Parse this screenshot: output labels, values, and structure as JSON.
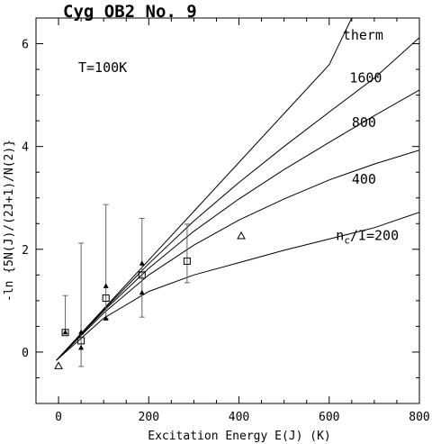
{
  "chart_data": {
    "type": "line",
    "title": "Cyg OB2 No. 9",
    "annotation": "T=100K",
    "xlabel": "Excitation Energy E(J) (K)",
    "ylabel": "-ln {5N(J)/(2J+1)/N(2)}",
    "xlim": [
      -50,
      800
    ],
    "ylim": [
      -1,
      6.5
    ],
    "xticks": [
      0,
      200,
      400,
      600,
      800
    ],
    "yticks": [
      0,
      2,
      4,
      6
    ],
    "grid": false,
    "model_curves": [
      {
        "label": "therm",
        "x": [
          -5,
          100,
          200,
          300,
          400,
          500,
          600,
          650
        ],
        "y": [
          -0.16,
          0.84,
          1.79,
          2.74,
          3.69,
          4.64,
          5.59,
          6.5
        ]
      },
      {
        "label": "1600",
        "x": [
          -5,
          100,
          200,
          300,
          400,
          500,
          600,
          700,
          800
        ],
        "y": [
          -0.16,
          0.82,
          1.72,
          2.55,
          3.3,
          4.0,
          4.67,
          5.33,
          6.12
        ]
      },
      {
        "label": "800",
        "x": [
          -5,
          100,
          200,
          300,
          400,
          500,
          600,
          700,
          800
        ],
        "y": [
          -0.16,
          0.8,
          1.63,
          2.35,
          2.98,
          3.55,
          4.08,
          4.6,
          5.1
        ]
      },
      {
        "label": "400",
        "x": [
          -5,
          100,
          200,
          300,
          400,
          500,
          600,
          700,
          800
        ],
        "y": [
          -0.16,
          0.76,
          1.5,
          2.08,
          2.57,
          2.98,
          3.35,
          3.66,
          3.93
        ]
      },
      {
        "label_main": "n",
        "label_sub": "c",
        "label_rest": "/I=200",
        "x": [
          -5,
          100,
          200,
          300,
          400,
          500,
          600,
          700,
          800
        ],
        "y": [
          -0.16,
          0.66,
          1.18,
          1.5,
          1.74,
          1.98,
          2.2,
          2.42,
          2.72
        ]
      }
    ],
    "curve_labels": [
      {
        "text": "therm",
        "x": 630,
        "y": 6.08
      },
      {
        "text": "1600",
        "x": 645,
        "y": 5.25
      },
      {
        "text": "800",
        "x": 650,
        "y": 4.38
      },
      {
        "text": "400",
        "x": 650,
        "y": 3.28
      },
      {
        "text": "n_c/I=200",
        "x": 615,
        "y": 2.18
      }
    ],
    "series": [
      {
        "name": "squares",
        "marker": "square",
        "points": [
          {
            "x": 15,
            "y": 0.38,
            "yerr_lo": 0.0,
            "yerr_hi": 0.72
          },
          {
            "x": 50,
            "y": 0.22,
            "yerr_lo": 0.5,
            "yerr_hi": 1.9
          },
          {
            "x": 105,
            "y": 1.05,
            "yerr_lo": 0.4,
            "yerr_hi": 1.82
          },
          {
            "x": 185,
            "y": 1.5,
            "yerr_lo": 0.82,
            "yerr_hi": 1.1
          },
          {
            "x": 285,
            "y": 1.77,
            "yerr_lo": 0.42,
            "yerr_hi": 0.72
          }
        ]
      },
      {
        "name": "filled-triangles",
        "marker": "filled-triangle",
        "points": [
          {
            "x": 15,
            "y": 0.38
          },
          {
            "x": 50,
            "y": 0.38
          },
          {
            "x": 50,
            "y": 0.08
          },
          {
            "x": 105,
            "y": 1.28
          },
          {
            "x": 105,
            "y": 0.65
          },
          {
            "x": 185,
            "y": 1.72
          },
          {
            "x": 185,
            "y": 1.15
          }
        ]
      },
      {
        "name": "open-triangles",
        "marker": "open-triangle",
        "points": [
          {
            "x": 0,
            "y": -0.28
          },
          {
            "x": 405,
            "y": 2.25
          }
        ]
      }
    ]
  }
}
